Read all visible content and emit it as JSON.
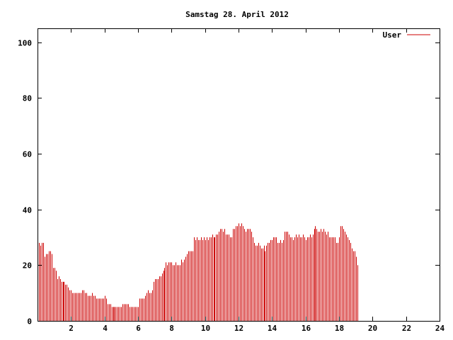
{
  "chart_data": {
    "type": "bar",
    "title": "Samstag 28. April 2012",
    "xlabel": "",
    "ylabel": "",
    "xlim": [
      0,
      24
    ],
    "ylim": [
      0,
      105
    ],
    "x_ticks": [
      2,
      4,
      6,
      8,
      10,
      12,
      14,
      16,
      18,
      20,
      22,
      24
    ],
    "y_ticks": [
      0,
      20,
      40,
      60,
      80,
      100
    ],
    "grid": false,
    "legend_position": "top-right",
    "series": [
      {
        "name": "User",
        "color": "#cc0000",
        "interval_minutes": 5,
        "values": [
          29,
          28,
          27,
          28,
          28,
          23,
          24,
          24,
          25,
          25,
          24,
          19,
          19,
          18,
          15,
          16,
          15,
          14,
          14,
          14,
          13,
          13,
          12,
          11,
          11,
          10,
          10,
          10,
          10,
          10,
          10,
          10,
          11,
          11,
          10,
          10,
          9,
          9,
          9,
          10,
          9,
          9,
          8,
          8,
          8,
          8,
          8,
          8,
          9,
          8,
          6,
          6,
          6,
          5,
          5,
          5,
          5,
          5,
          5,
          5,
          5,
          6,
          6,
          6,
          6,
          6,
          5,
          5,
          5,
          5,
          5,
          5,
          5,
          8,
          8,
          8,
          8,
          9,
          10,
          11,
          10,
          10,
          11,
          14,
          15,
          15,
          15,
          16,
          16,
          17,
          18,
          19,
          21,
          20,
          21,
          21,
          21,
          20,
          20,
          21,
          20,
          20,
          20,
          22,
          21,
          22,
          23,
          24,
          25,
          25,
          25,
          25,
          30,
          29,
          30,
          29,
          29,
          30,
          29,
          30,
          29,
          30,
          29,
          30,
          30,
          31,
          30,
          30,
          31,
          31,
          32,
          33,
          33,
          32,
          33,
          31,
          31,
          31,
          30,
          30,
          33,
          33,
          34,
          34,
          35,
          34,
          35,
          34,
          33,
          32,
          33,
          33,
          33,
          32,
          30,
          28,
          27,
          27,
          28,
          27,
          26,
          26,
          27,
          25,
          27,
          28,
          28,
          29,
          29,
          30,
          30,
          30,
          28,
          28,
          29,
          28,
          29,
          32,
          32,
          32,
          31,
          30,
          30,
          29,
          30,
          31,
          30,
          31,
          30,
          30,
          31,
          30,
          29,
          30,
          30,
          31,
          30,
          31,
          33,
          34,
          33,
          32,
          32,
          33,
          32,
          33,
          32,
          31,
          32,
          30,
          30,
          30,
          30,
          30,
          28,
          28,
          30,
          34,
          34,
          33,
          32,
          31,
          30,
          29,
          28,
          26,
          25,
          25,
          23,
          20
        ]
      }
    ]
  }
}
